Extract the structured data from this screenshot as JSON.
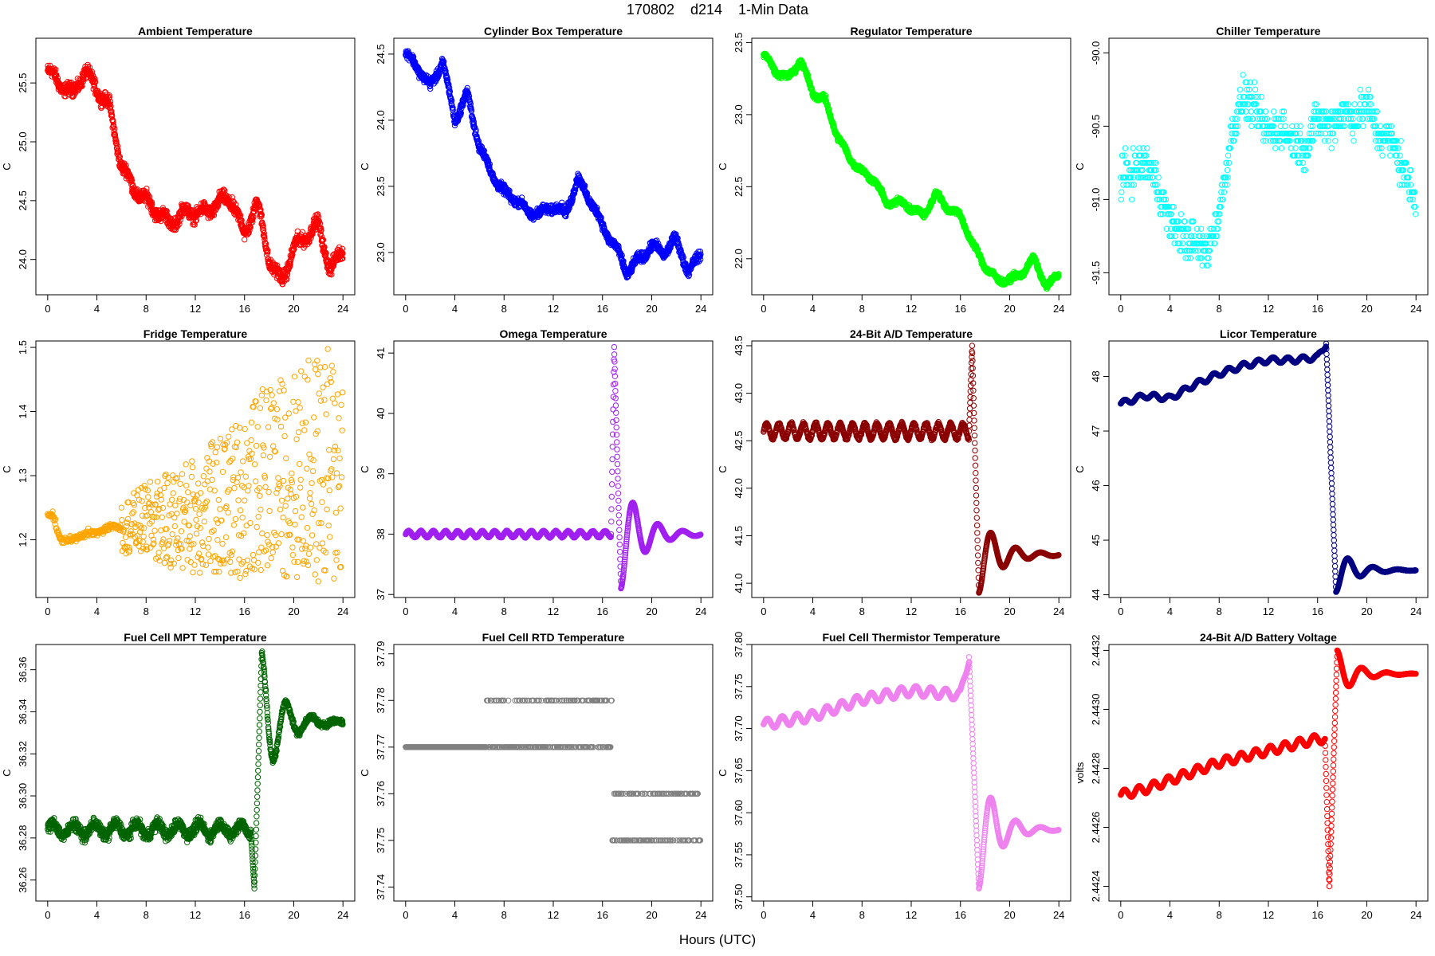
{
  "title": "170802    d214    1-Min Data",
  "xlabel": "Hours (UTC)",
  "x_ticks": [
    0,
    4,
    8,
    12,
    16,
    20,
    24
  ],
  "chart_data": [
    {
      "type": "scatter",
      "title": "Ambient Temperature",
      "ylabel": "C",
      "color": "#ff0000",
      "ylim": [
        23.7,
        25.88
      ],
      "yticks": [
        "24.0",
        "24.5",
        "25.0",
        "25.5"
      ],
      "pattern": "ambient",
      "x": [
        0,
        2,
        3,
        5,
        6,
        7,
        8,
        9,
        10,
        11,
        12,
        13,
        14,
        15,
        16,
        17,
        18,
        19,
        20,
        21,
        22,
        23,
        24
      ],
      "y": [
        25.6,
        25.4,
        25.6,
        25.3,
        24.8,
        24.6,
        24.5,
        24.4,
        24.3,
        24.4,
        24.4,
        24.4,
        24.5,
        24.5,
        24.2,
        24.5,
        24.0,
        23.8,
        24.1,
        24.2,
        24.3,
        23.9,
        24.1
      ],
      "noise": 0.08
    },
    {
      "type": "scatter",
      "title": "Cylinder Box Temperature",
      "ylabel": "C",
      "color": "#0000ff",
      "ylim": [
        22.68,
        24.62
      ],
      "yticks": [
        "23.0",
        "23.5",
        "24.0",
        "24.5"
      ],
      "pattern": "cylinder",
      "x": [
        0,
        1,
        2,
        3,
        4,
        5,
        6,
        7,
        8,
        9,
        10,
        11,
        12,
        13,
        14,
        15,
        16,
        17,
        18,
        19,
        20,
        21,
        22,
        23,
        24
      ],
      "y": [
        24.5,
        24.4,
        24.25,
        24.45,
        24.0,
        24.2,
        23.8,
        23.6,
        23.45,
        23.4,
        23.3,
        23.3,
        23.35,
        23.3,
        23.55,
        23.4,
        23.2,
        23.05,
        22.85,
        22.95,
        23.05,
        23.0,
        23.1,
        22.85,
        23.0
      ],
      "noise": 0.05
    },
    {
      "type": "scatter",
      "title": "Regulator Temperature",
      "ylabel": "C",
      "color": "#00ff00",
      "ylim": [
        21.75,
        23.53
      ],
      "yticks": [
        "22.0",
        "22.5",
        "23.0",
        "23.5"
      ],
      "pattern": "regulator",
      "x": [
        0,
        1,
        2,
        3,
        4,
        5,
        6,
        7,
        8,
        9,
        10,
        11,
        12,
        13,
        14,
        15,
        16,
        17,
        18,
        19,
        20,
        21,
        22,
        23,
        24
      ],
      "y": [
        23.42,
        23.3,
        23.25,
        23.38,
        23.15,
        23.1,
        22.85,
        22.7,
        22.6,
        22.55,
        22.38,
        22.4,
        22.35,
        22.3,
        22.45,
        22.35,
        22.3,
        22.1,
        21.95,
        21.85,
        21.85,
        21.9,
        22.0,
        21.8,
        21.9
      ],
      "noise": 0.03
    },
    {
      "type": "scatter",
      "title": "Chiller Temperature",
      "ylabel": "C",
      "color": "#00ffff",
      "ylim": [
        -91.65,
        -89.9
      ],
      "yticks": [
        "-91.5",
        "-91.0",
        "-90.5",
        "-90.0"
      ],
      "pattern": "chiller",
      "x": [
        0,
        1,
        2,
        3,
        4,
        5,
        6,
        7,
        8,
        9,
        10,
        11,
        12,
        13,
        14,
        15,
        16,
        17,
        18,
        19,
        20,
        21,
        22,
        23,
        24
      ],
      "y": [
        -90.85,
        -90.8,
        -90.75,
        -90.9,
        -91.15,
        -91.25,
        -91.3,
        -91.35,
        -91.1,
        -90.55,
        -90.3,
        -90.4,
        -90.55,
        -90.5,
        -90.6,
        -90.65,
        -90.45,
        -90.5,
        -90.4,
        -90.45,
        -90.35,
        -90.55,
        -90.6,
        -90.8,
        -91.0
      ],
      "step": 0.05,
      "noise": 0.2
    },
    {
      "type": "scatter",
      "title": "Fridge Temperature",
      "ylabel": "C",
      "color": "#ffa500",
      "ylim": [
        1.11,
        1.51
      ],
      "yticks": [
        "1.2",
        "1.3",
        "1.4",
        "1.5"
      ],
      "pattern": "fridge",
      "x": [
        0,
        0.4,
        1,
        2,
        3,
        4,
        5,
        6,
        8,
        10,
        12,
        14,
        16,
        18,
        20,
        22,
        24
      ],
      "y": [
        1.24,
        1.24,
        1.2,
        1.2,
        1.21,
        1.21,
        1.22,
        1.22,
        1.23,
        1.23,
        1.24,
        1.25,
        1.27,
        1.3,
        1.3,
        1.31,
        1.31
      ],
      "noise": 0.1
    },
    {
      "type": "scatter",
      "title": "Omega Temperature",
      "ylabel": "C",
      "color": "#a020f0",
      "ylim": [
        36.95,
        41.2
      ],
      "yticks": [
        "37",
        "38",
        "39",
        "40",
        "41"
      ],
      "pattern": "omega",
      "baseline": 38.0,
      "ripple": 0.05,
      "spike_at": 16.7,
      "spike_peak": 41.1,
      "spike_trough": 37.1,
      "settle": 38.0
    },
    {
      "type": "scatter",
      "title": "24-Bit A/D Temperature",
      "ylabel": "C",
      "color": "#8b0000",
      "ylim": [
        40.85,
        43.55
      ],
      "yticks": [
        "41.0",
        "41.5",
        "42.0",
        "42.5",
        "43.0",
        "43.5"
      ],
      "pattern": "ad_temp",
      "baseline": 42.6,
      "ripple": 0.08,
      "spike_at": 16.7,
      "spike_peak": 43.5,
      "spike_trough": 40.9,
      "settle": 41.3
    },
    {
      "type": "scatter",
      "title": "Licor Temperature",
      "ylabel": "C",
      "color": "#000080",
      "ylim": [
        43.95,
        48.65
      ],
      "yticks": [
        "44",
        "45",
        "46",
        "47",
        "48"
      ],
      "pattern": "licor",
      "x": [
        0,
        2,
        4,
        6,
        8,
        10,
        12,
        14,
        16,
        16.7
      ],
      "y": [
        47.5,
        47.65,
        47.6,
        47.85,
        48.05,
        48.2,
        48.3,
        48.3,
        48.35,
        48.6
      ],
      "spike_at": 16.7,
      "spike_trough": 44.05,
      "settle": 44.45
    },
    {
      "type": "scatter",
      "title": "Fuel Cell MPT Temperature",
      "ylabel": "C",
      "color": "#006400",
      "ylim": [
        36.25,
        36.372
      ],
      "yticks": [
        "36.26",
        "36.28",
        "36.30",
        "36.32",
        "36.34",
        "36.36"
      ],
      "pattern": "mpt",
      "baseline": 36.284,
      "ripple": 0.003,
      "noise": 0.004,
      "spike_at": 16.5,
      "spike_peak": 36.368,
      "spike_trough": 36.256,
      "settle": 36.335
    },
    {
      "type": "scatter",
      "title": "Fuel Cell RTD Temperature",
      "ylabel": "C",
      "color": "#808080",
      "ylim": [
        37.737,
        37.792
      ],
      "yticks": [
        "37.74",
        "37.75",
        "37.76",
        "37.77",
        "37.78",
        "37.79"
      ],
      "pattern": "rtd",
      "levels_before": [
        37.77,
        37.78
      ],
      "levels_after": [
        37.75,
        37.76
      ],
      "spike_at": 16.8
    },
    {
      "type": "scatter",
      "title": "Fuel Cell Thermistor Temperature",
      "ylabel": "C",
      "color": "#ee82ee",
      "ylim": [
        37.495,
        37.8
      ],
      "yticks": [
        "37.50",
        "37.55",
        "37.60",
        "37.65",
        "37.70",
        "37.75",
        "37.80"
      ],
      "pattern": "thermistor",
      "x": [
        0,
        4,
        8,
        12,
        16,
        16.7
      ],
      "y": [
        37.705,
        37.715,
        37.735,
        37.745,
        37.74,
        37.785
      ],
      "spike_at": 16.7,
      "spike_trough": 37.51,
      "settle": 37.58
    },
    {
      "type": "scatter",
      "title": "24-Bit A/D Battery Voltage",
      "ylabel": "volts",
      "color": "#ff0000",
      "ylim": [
        2.44235,
        2.44322
      ],
      "yticks": [
        "2.4424",
        "2.4426",
        "2.4428",
        "2.4430",
        "2.4432"
      ],
      "pattern": "battery",
      "x": [
        0,
        2,
        4,
        6,
        8,
        10,
        12,
        14,
        16,
        16.5
      ],
      "y": [
        2.44271,
        2.44273,
        2.44276,
        2.44279,
        2.44282,
        2.44284,
        2.44286,
        2.44288,
        2.4429,
        2.4429
      ],
      "spike_at": 16.6,
      "spike_trough": 2.4424,
      "spike_peak": 2.4432,
      "settle": 2.44312
    }
  ]
}
